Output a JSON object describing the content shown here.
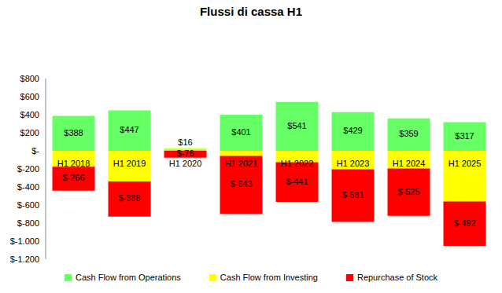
{
  "chart_data": {
    "type": "bar",
    "title": "Flussi di cassa H1",
    "categories": [
      "H1 2018",
      "H1 2019",
      "H1 2020",
      "H1 2021",
      "H1 2022",
      "H1 2023",
      "H1 2024",
      "H1 2025"
    ],
    "series": [
      {
        "name": "Cash Flow from Operations",
        "color": "#66ff66",
        "values": [
          388,
          447,
          16,
          401,
          541,
          429,
          359,
          317
        ],
        "value_labels": [
          "$388",
          "$447",
          "$16",
          "$401",
          "$541",
          "$429",
          "$359",
          "$317"
        ]
      },
      {
        "name": "Cash Flow from Investing",
        "color": "#ffff00",
        "values": [
          -175,
          -340,
          14,
          -57,
          -125,
          -205,
          -195,
          -560
        ]
      },
      {
        "name": "Repurchase of Stock",
        "color": "#ff0000",
        "values": [
          -266,
          -388,
          -76,
          -643,
          -441,
          -581,
          -525,
          -492
        ],
        "value_labels": [
          "$-266",
          "$-388",
          "$-76",
          "$-643",
          "$-441",
          "$-581",
          "$-525",
          "$-492"
        ]
      }
    ],
    "ylim": [
      -1200,
      800
    ],
    "yticks": [
      {
        "value": -1200,
        "label": "$-1.200"
      },
      {
        "value": -1000,
        "label": "$-1.000"
      },
      {
        "value": -800,
        "label": "$-800"
      },
      {
        "value": -600,
        "label": "$-600"
      },
      {
        "value": -400,
        "label": "$-400"
      },
      {
        "value": -200,
        "label": "$-200"
      },
      {
        "value": 0,
        "label": "$-"
      },
      {
        "value": 200,
        "label": "$200"
      },
      {
        "value": 400,
        "label": "$400"
      },
      {
        "value": 600,
        "label": "$600"
      },
      {
        "value": 800,
        "label": "$800"
      }
    ],
    "stacked": true,
    "data_labels": true,
    "legend": "bottom",
    "grid": false
  }
}
